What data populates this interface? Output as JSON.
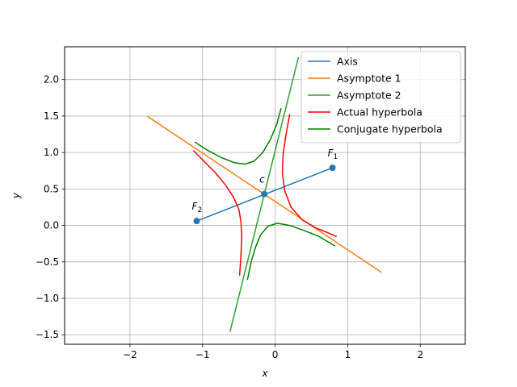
{
  "chart_data": {
    "type": "line",
    "title": "",
    "xlabel": "x",
    "ylabel": "y",
    "xlim": [
      -2.9,
      2.62
    ],
    "ylim": [
      -1.63,
      2.45
    ],
    "xticks": [
      -2,
      -1,
      0,
      1,
      2
    ],
    "xtick_labels": [
      "−2",
      "−1",
      "0",
      "1",
      "2"
    ],
    "yticks": [
      -1.5,
      -1.0,
      -0.5,
      0.0,
      0.5,
      1.0,
      1.5,
      2.0
    ],
    "ytick_labels": [
      "−1.5",
      "−1.0",
      "−0.5",
      "0.0",
      "0.5",
      "1.0",
      "1.5",
      "2.0"
    ],
    "grid": true,
    "legend_position": "top-right",
    "colors": {
      "axis": "#1f77b4",
      "asymptote1": "#ff7f0e",
      "asymptote2": "#2ca02c",
      "actual": "#ff0000",
      "conjugate": "#008000"
    },
    "series": [
      {
        "name": "Axis",
        "color": "#1f77b4",
        "x": [
          -1.08,
          0.79
        ],
        "y": [
          0.06,
          0.79
        ]
      },
      {
        "name": "Asymptote 1",
        "color": "#ff7f0e",
        "x": [
          -1.75,
          1.46
        ],
        "y": [
          1.49,
          -0.64
        ]
      },
      {
        "name": "Asymptote 2",
        "color": "#2ca02c",
        "x": [
          -0.62,
          0.32
        ],
        "y": [
          -1.45,
          2.3
        ]
      },
      {
        "name": "Actual hyperbola",
        "color": "#ff0000",
        "branches": [
          {
            "x": [
              -1.12,
              -0.98,
              -0.82,
              -0.68,
              -0.57,
              -0.5,
              -0.47,
              -0.46,
              -0.47,
              -0.49
            ],
            "y": [
              1.02,
              0.88,
              0.72,
              0.55,
              0.38,
              0.22,
              0.05,
              -0.15,
              -0.42,
              -0.68
            ]
          },
          {
            "x": [
              0.2,
              0.15,
              0.11,
              0.1,
              0.13,
              0.22,
              0.37,
              0.55,
              0.7,
              0.84
            ],
            "y": [
              1.52,
              1.25,
              0.98,
              0.72,
              0.48,
              0.25,
              0.08,
              -0.03,
              -0.09,
              -0.15
            ]
          }
        ]
      },
      {
        "name": "Conjugate hyperbola",
        "color": "#008000",
        "branches": [
          {
            "x": [
              -1.1,
              -0.93,
              -0.74,
              -0.56,
              -0.42,
              -0.29,
              -0.17,
              -0.07,
              0.02,
              0.08
            ],
            "y": [
              1.14,
              1.03,
              0.93,
              0.86,
              0.84,
              0.88,
              1.0,
              1.17,
              1.38,
              1.6
            ]
          },
          {
            "x": [
              -0.38,
              -0.33,
              -0.27,
              -0.2,
              -0.1,
              0.03,
              0.2,
              0.4,
              0.6,
              0.82
            ],
            "y": [
              -0.74,
              -0.5,
              -0.3,
              -0.13,
              -0.01,
              0.03,
              0.0,
              -0.07,
              -0.15,
              -0.28
            ]
          }
        ]
      }
    ],
    "points": [
      {
        "label": "F",
        "subscript": "2",
        "x": -1.08,
        "y": 0.06
      },
      {
        "label": "F",
        "subscript": "1",
        "x": 0.79,
        "y": 0.79
      },
      {
        "label": "c",
        "subscript": "",
        "x": -0.15,
        "y": 0.43
      }
    ]
  }
}
